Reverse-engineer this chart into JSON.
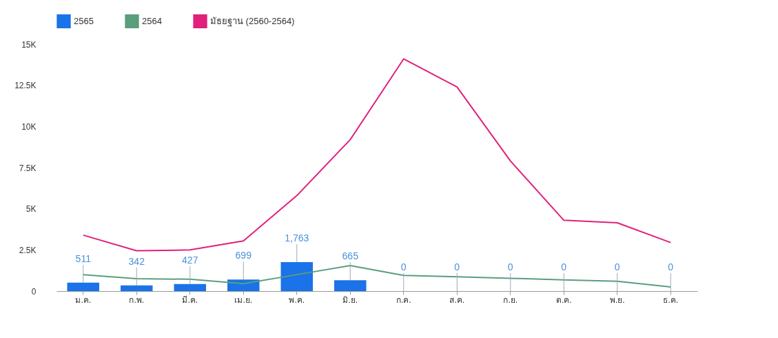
{
  "chart_data": {
    "type": "bar",
    "categories": [
      "ม.ค.",
      "ก.พ.",
      "มี.ค.",
      "เม.ย.",
      "พ.ค.",
      "มิ.ย.",
      "ก.ค.",
      "ส.ค.",
      "ก.ย.",
      "ต.ค.",
      "พ.ย.",
      "ธ.ค."
    ],
    "series": [
      {
        "name": "2565",
        "type": "bar",
        "color": "#1a73e8",
        "values": [
          511,
          342,
          427,
          699,
          1763,
          665,
          0,
          0,
          0,
          0,
          0,
          0
        ],
        "value_labels": [
          "511",
          "342",
          "427",
          "699",
          "1,763",
          "665",
          "0",
          "0",
          "0",
          "0",
          "0",
          "0"
        ]
      },
      {
        "name": "2564",
        "type": "line",
        "color": "#5a9e7c",
        "values": [
          1000,
          750,
          720,
          450,
          1000,
          1550,
          950,
          870,
          780,
          680,
          600,
          250
        ]
      },
      {
        "name": "มัธยฐาน (2560-2564)",
        "type": "line",
        "color": "#e0207a",
        "values": [
          3400,
          2450,
          2500,
          3050,
          5800,
          9200,
          14100,
          12400,
          7900,
          4300,
          4150,
          2950
        ]
      }
    ],
    "ylim": [
      0,
      15000
    ],
    "yticks": [
      0,
      {
        "value": 2500,
        "label": "2.5K"
      },
      {
        "value": 5000,
        "label": "5K"
      },
      {
        "value": 7500,
        "label": "7.5K"
      },
      {
        "value": 10000,
        "label": "10K"
      },
      {
        "value": 12500,
        "label": "12.5K"
      },
      {
        "value": 15000,
        "label": "15K"
      }
    ],
    "grid": false,
    "legend": "top left",
    "marker": "none"
  }
}
